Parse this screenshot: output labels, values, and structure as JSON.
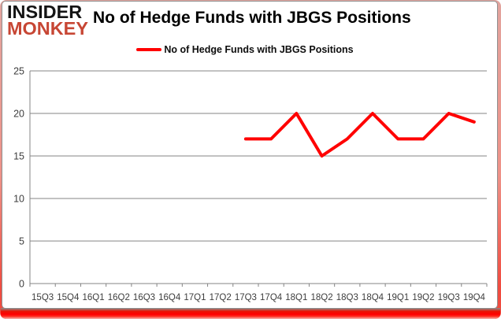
{
  "logo": {
    "line1": "INSIDER",
    "line2": "MONKEY"
  },
  "header": {
    "title": "No of Hedge Funds with JBGS Positions"
  },
  "chart_data": {
    "type": "line",
    "title": "No of Hedge Funds with JBGS Positions",
    "categories": [
      "15Q3",
      "15Q4",
      "16Q1",
      "16Q2",
      "16Q3",
      "16Q4",
      "17Q1",
      "17Q2",
      "17Q3",
      "17Q4",
      "18Q1",
      "18Q2",
      "18Q3",
      "18Q4",
      "19Q1",
      "19Q2",
      "19Q3",
      "19Q4"
    ],
    "series": [
      {
        "name": "No of Hedge Funds with JBGS Positions",
        "color": "#ff0000",
        "values": [
          null,
          null,
          null,
          null,
          null,
          null,
          null,
          null,
          17,
          17,
          20,
          15,
          17,
          20,
          17,
          17,
          20,
          19
        ]
      }
    ],
    "ylim": [
      0,
      25
    ],
    "yticks": [
      0,
      5,
      10,
      15,
      20,
      25
    ],
    "grid": "horizontal-only",
    "legend_position": "top-center"
  },
  "colors": {
    "line_red": "#ff0000",
    "grid_gray": "#848484",
    "axis_gray": "#848484",
    "tick_text": "#3d3d3d",
    "logo_red": "#c74634",
    "frame_red": "#ff0000"
  }
}
